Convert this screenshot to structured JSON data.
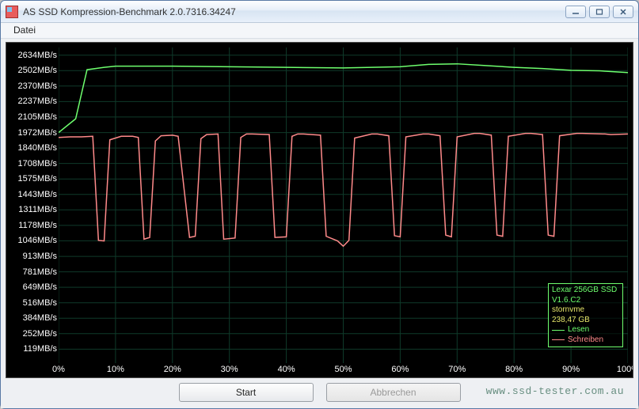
{
  "window": {
    "title": "AS SSD Kompression-Benchmark 2.0.7316.34247",
    "controls": {
      "min": "—",
      "max": "▢",
      "close": "✕"
    }
  },
  "menu": {
    "datei": "Datei"
  },
  "buttons": {
    "start": "Start",
    "abort": "Abbrechen"
  },
  "watermark": "www.ssd-tester.com.au",
  "legend": {
    "device": "Lexar 256GB SSD",
    "firmware": "V1.6.C2",
    "driver": "stornvme",
    "capacity": "238,47 GB",
    "read_label": "Lesen",
    "write_label": "Schreiben"
  },
  "chart": {
    "background_color": "#000000",
    "grid_color": "#0f3a2a",
    "read_color": "#6eff6e",
    "write_color": "#ff8a8a",
    "label_color": "#ffffff",
    "label_fontsize": 11,
    "y_unit": "MB/s",
    "y_ticks": [
      119,
      252,
      384,
      516,
      649,
      781,
      913,
      1046,
      1178,
      1311,
      1443,
      1575,
      1708,
      1840,
      1972,
      2105,
      2237,
      2370,
      2502,
      2634
    ],
    "ylim_min": 0,
    "ylim_max": 2700,
    "x_ticks": [
      0,
      10,
      20,
      30,
      40,
      50,
      60,
      70,
      80,
      90,
      100
    ],
    "x_unit": "%",
    "read_series": {
      "x": [
        0,
        3,
        5,
        8,
        10,
        20,
        30,
        40,
        50,
        60,
        65,
        70,
        75,
        80,
        85,
        90,
        95,
        100
      ],
      "y": [
        1972,
        2090,
        2510,
        2530,
        2540,
        2540,
        2535,
        2530,
        2525,
        2535,
        2555,
        2560,
        2545,
        2530,
        2520,
        2505,
        2500,
        2485
      ]
    },
    "write_series": {
      "x": [
        0,
        2,
        4,
        6,
        7,
        8,
        9,
        11,
        13,
        14,
        15,
        16,
        17,
        18,
        20,
        21,
        23,
        24,
        25,
        26,
        28,
        29,
        31,
        32,
        33,
        34,
        37,
        38,
        40,
        41,
        42,
        43,
        46,
        47,
        49,
        50,
        51,
        52,
        55,
        56,
        58,
        59,
        60,
        61,
        64,
        65,
        67,
        68,
        69,
        70,
        73,
        74,
        76,
        77,
        78,
        79,
        82,
        83,
        85,
        86,
        87,
        88,
        91,
        92,
        96,
        97,
        100
      ],
      "y": [
        1930,
        1935,
        1935,
        1940,
        1050,
        1045,
        1910,
        1940,
        1940,
        1930,
        1060,
        1075,
        1900,
        1945,
        1950,
        1940,
        1075,
        1085,
        1920,
        1955,
        1960,
        1060,
        1070,
        1930,
        1960,
        1960,
        1955,
        1075,
        1080,
        1940,
        1960,
        1960,
        1950,
        1085,
        1045,
        1000,
        1050,
        1925,
        1960,
        1960,
        1945,
        1090,
        1080,
        1935,
        1960,
        1960,
        1945,
        1095,
        1080,
        1935,
        1965,
        1965,
        1950,
        1095,
        1085,
        1940,
        1965,
        1965,
        1955,
        1095,
        1085,
        1945,
        1965,
        1965,
        1960,
        1955,
        1960
      ]
    }
  }
}
